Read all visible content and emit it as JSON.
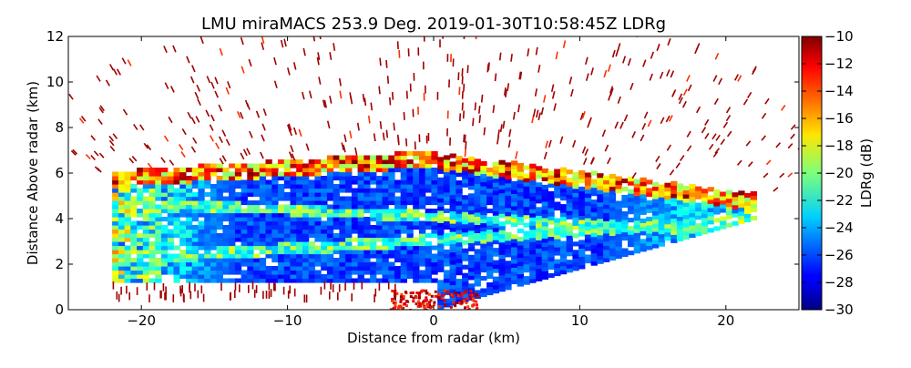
{
  "chart_data": {
    "type": "heatmap",
    "title": "LMU miraMACS 253.9 Deg. 2019-01-30T10:58:45Z  LDRg",
    "xlabel": "Distance from radar (km)",
    "ylabel": "Distance Above radar  (km)",
    "xlim": [
      -25,
      25
    ],
    "ylim": [
      0,
      12
    ],
    "x_ticks": [
      -20,
      -10,
      0,
      10,
      20
    ],
    "x_tick_labels": [
      "−20",
      "−10",
      "0",
      "10",
      "20"
    ],
    "y_ticks": [
      0,
      2,
      4,
      6,
      8,
      10,
      12
    ],
    "y_tick_labels": [
      "0",
      "2",
      "4",
      "6",
      "8",
      "10",
      "12"
    ],
    "colorbar": {
      "label": "LDRg (dB)",
      "range": [
        -30,
        -10
      ],
      "ticks": [
        -30,
        -28,
        -26,
        -24,
        -22,
        -20,
        -18,
        -16,
        -14,
        -12,
        -10
      ],
      "tick_labels": [
        "−30",
        "−28",
        "−26",
        "−24",
        "−22",
        "−20",
        "−18",
        "−16",
        "−14",
        "−12",
        "−10"
      ],
      "colormap": "jet"
    },
    "scan": {
      "description_shape": "RHI sector scan",
      "cloud_left_edge_x": -22,
      "cloud_right_edge_x": 22,
      "cloud_top_left": 6,
      "cloud_top_right": 5,
      "cloud_top_center": 7,
      "lowest_beam_right_top": 4
    },
    "grid": false,
    "colors": {
      "dominant": "#0022ff",
      "noise": "#a00000"
    }
  }
}
